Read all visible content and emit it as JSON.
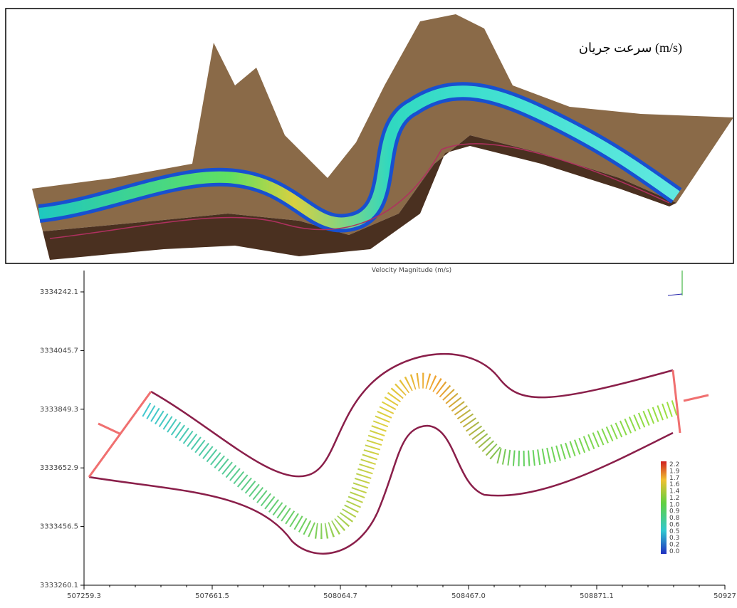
{
  "top_panel": {
    "label": "سرعت جریان (m/s)"
  },
  "plot": {
    "title": "Velocity Magnitude (m/s)",
    "y_tick_labels": [
      "3334242.1",
      "3334045.7",
      "3333849.3",
      "3333652.9",
      "3333456.5",
      "3333260.1"
    ],
    "x_tick_labels": [
      "507259.3",
      "507661.5",
      "508064.7",
      "508467.0",
      "508871.1",
      "50927"
    ],
    "colorbar_labels": [
      "2.2",
      "1.9",
      "1.7",
      "1.6",
      "1.4",
      "1.2",
      "1.0",
      "0.9",
      "0.8",
      "0.6",
      "0.5",
      "0.3",
      "0.2",
      "0.0"
    ]
  }
}
